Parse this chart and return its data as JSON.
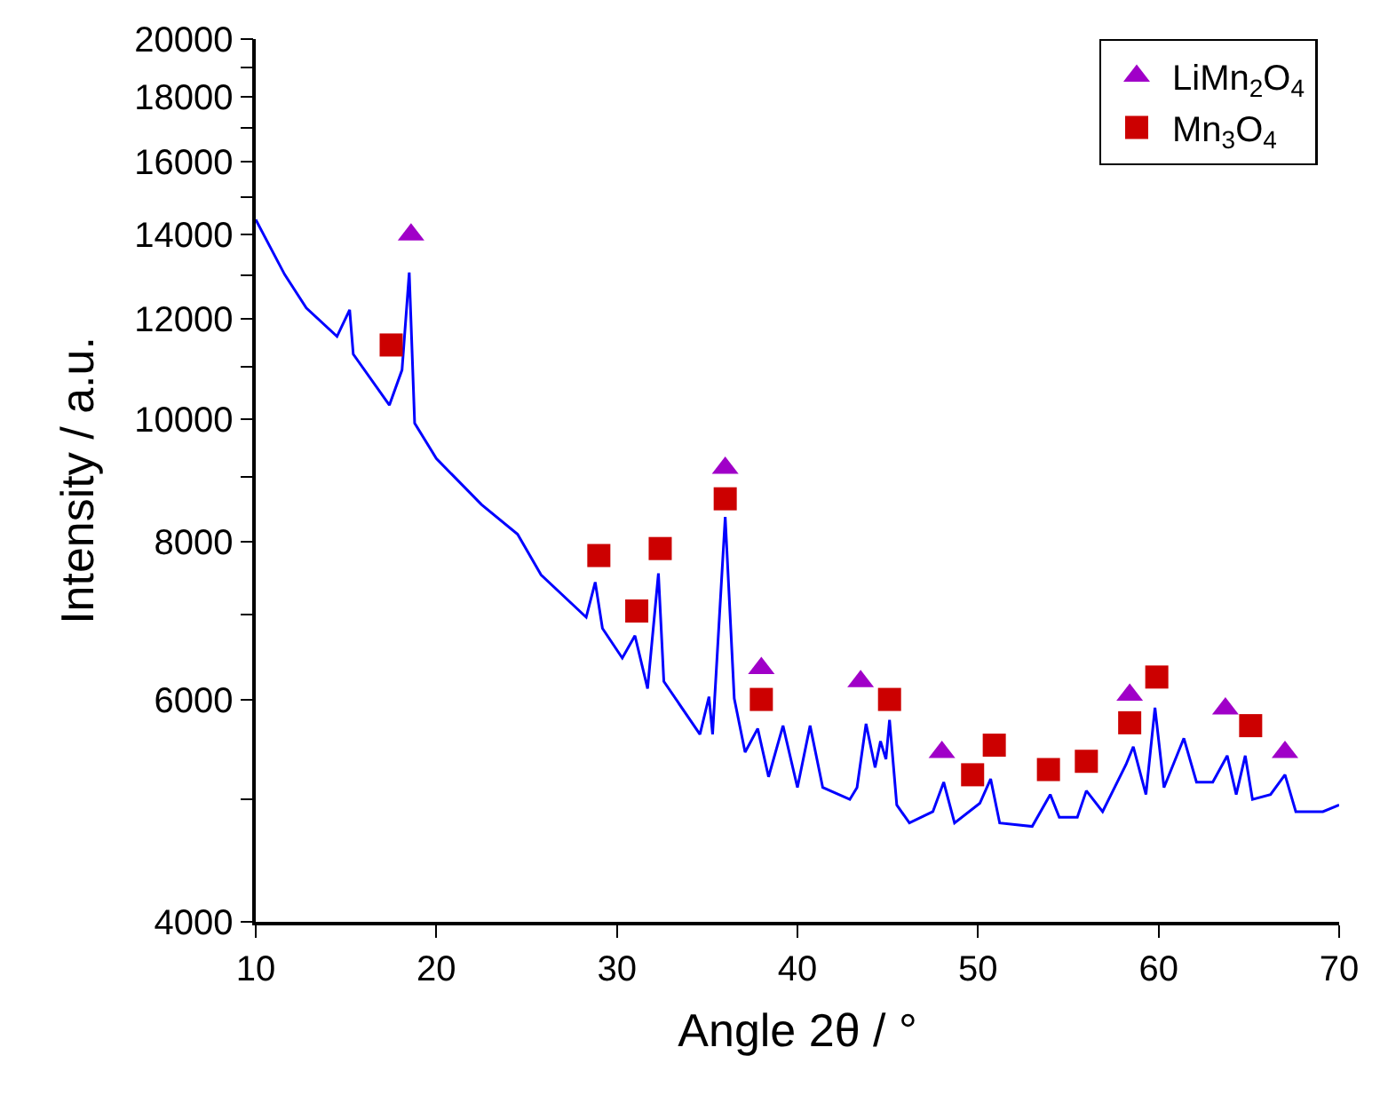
{
  "chart_data": {
    "type": "line",
    "xlabel": "Angle 2θ / °",
    "ylabel": "Intensity / a.u.",
    "log": "y",
    "xlim": [
      10,
      70
    ],
    "xticks": [
      10,
      20,
      30,
      40,
      50,
      60,
      70
    ],
    "ylim": [
      4000,
      20000
    ],
    "yticks": [
      4000,
      {
        "value": 5000,
        "label": null
      },
      6000,
      {
        "value": 7000,
        "label": null
      },
      8000,
      {
        "value": 9000,
        "label": null
      },
      10000,
      {
        "value": 11000,
        "label": null
      },
      12000,
      {
        "value": 13000,
        "label": null
      },
      14000,
      {
        "value": 15000,
        "label": null
      },
      16000,
      {
        "value": 17000,
        "label": null
      },
      18000,
      {
        "value": 19000,
        "label": null
      },
      20000
    ],
    "legend": "top right",
    "series": [
      {
        "color": "#0000ff",
        "marker": "none",
        "line_style": "solid",
        "x": [
          10.0,
          11.6,
          12.8,
          14.5,
          15.2,
          15.4,
          17.4,
          18.1,
          18.5,
          18.8,
          20.0,
          22.5,
          24.5,
          25.8,
          28.3,
          28.8,
          29.2,
          30.3,
          31.0,
          31.7,
          32.3,
          32.6,
          34.6,
          35.1,
          35.3,
          36.0,
          36.5,
          37.1,
          37.8,
          38.4,
          39.2,
          40.0,
          40.7,
          41.4,
          42.9,
          43.3,
          43.8,
          44.3,
          44.6,
          44.9,
          45.1,
          45.5,
          46.2,
          47.5,
          48.1,
          48.7,
          50.1,
          50.7,
          51.2,
          53.0,
          54.0,
          54.5,
          55.5,
          56.0,
          56.9,
          58.2,
          58.6,
          59.3,
          59.8,
          60.3,
          61.4,
          62.1,
          63.0,
          63.8,
          64.3,
          64.8,
          65.2,
          66.2,
          67.0,
          67.6,
          69.1,
          70.0
        ],
        "values": [
          14390,
          13020,
          12250,
          11630,
          12210,
          11260,
          10260,
          10940,
          13070,
          9930,
          9310,
          8560,
          8110,
          7530,
          6970,
          7430,
          6830,
          6470,
          6740,
          6120,
          7550,
          6200,
          5630,
          6030,
          5630,
          8370,
          6010,
          5450,
          5690,
          5210,
          5720,
          5110,
          5720,
          5110,
          5000,
          5110,
          5740,
          5300,
          5560,
          5380,
          5780,
          4950,
          4790,
          4890,
          5160,
          4790,
          4965,
          5190,
          4790,
          4760,
          5045,
          4840,
          4840,
          5080,
          4890,
          5330,
          5505,
          5045,
          5910,
          5110,
          5590,
          5160,
          5160,
          5415,
          5045,
          5415,
          5000,
          5045,
          5230,
          4890,
          4890,
          4950
        ]
      },
      {
        "type": "scatter",
        "name": "LiMn$_{2}$O$_{4}$",
        "color": "#a000c8",
        "marker": "triangle",
        "x": [
          18.6,
          36.0,
          38.0,
          43.5,
          48.0,
          58.4,
          63.7,
          67.0
        ],
        "values": [
          14000,
          9150,
          6350,
          6200,
          5450,
          6050,
          5900,
          5450
        ]
      },
      {
        "type": "scatter",
        "name": "Mn$_{3}$O$_{4}$",
        "color": "#cc0000",
        "marker": "square",
        "x": [
          17.5,
          29.0,
          31.1,
          32.4,
          36.0,
          38.0,
          45.1,
          49.7,
          50.9,
          53.9,
          56.0,
          58.4,
          59.9,
          65.1
        ],
        "values": [
          11450,
          7800,
          7050,
          7900,
          8650,
          6000,
          6000,
          5230,
          5520,
          5280,
          5360,
          5750,
          6250,
          5720
        ]
      }
    ]
  }
}
